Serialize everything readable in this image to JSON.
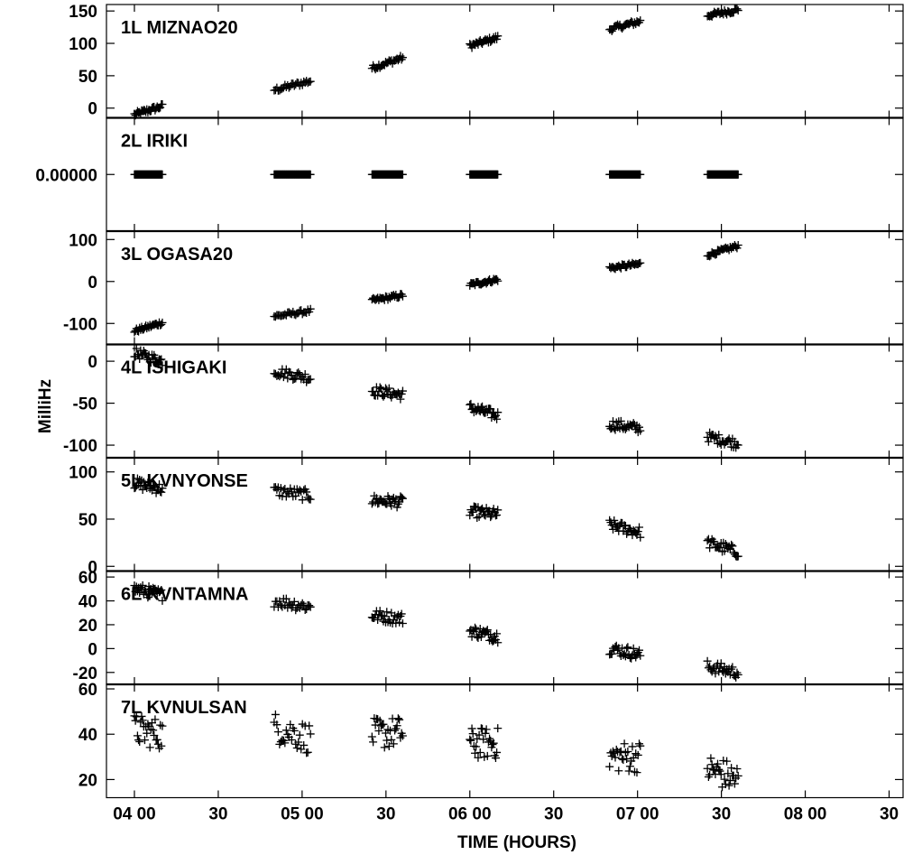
{
  "chart_data": {
    "type": "scatter",
    "xlabel": "TIME (HOURS)",
    "ylabel": "MilliHz",
    "xlim": [
      "03:50",
      "08:35"
    ],
    "x_ticks": [
      {
        "time": "04:00",
        "label": "04 00"
      },
      {
        "time": "04:30",
        "label": "30"
      },
      {
        "time": "05:00",
        "label": "05 00"
      },
      {
        "time": "05:30",
        "label": "30"
      },
      {
        "time": "06:00",
        "label": "06 00"
      },
      {
        "time": "06:30",
        "label": "30"
      },
      {
        "time": "07:00",
        "label": "07 00"
      },
      {
        "time": "07:30",
        "label": "30"
      },
      {
        "time": "08:00",
        "label": "08 00"
      },
      {
        "time": "08:30",
        "label": "30"
      }
    ],
    "scans": [
      {
        "start": "04:00",
        "end": "04:10"
      },
      {
        "start": "04:50",
        "end": "05:03"
      },
      {
        "start": "05:25",
        "end": "05:36"
      },
      {
        "start": "06:00",
        "end": "06:10"
      },
      {
        "start": "06:50",
        "end": "07:01"
      },
      {
        "start": "07:25",
        "end": "07:36"
      }
    ],
    "panels": [
      {
        "label": "1L MIZNAO20",
        "ylim": [
          -15,
          160
        ],
        "yticks": [
          {
            "v": 0,
            "t": "0"
          },
          {
            "v": 50,
            "t": "50"
          },
          {
            "v": 100,
            "t": "100"
          },
          {
            "v": 150,
            "t": "150"
          }
        ],
        "scan_values": [
          [
            -10,
            3
          ],
          [
            28,
            42
          ],
          [
            62,
            78
          ],
          [
            96,
            109
          ],
          [
            122,
            134
          ],
          [
            143,
            152
          ]
        ],
        "scatter": 4
      },
      {
        "label": "2L IRIKI",
        "ylim": [
          -1,
          1
        ],
        "yticks": [
          {
            "v": 0,
            "t": "0.00000"
          }
        ],
        "scan_values": [
          [
            0,
            0
          ],
          [
            0,
            0
          ],
          [
            0,
            0
          ],
          [
            0,
            0
          ],
          [
            0,
            0
          ],
          [
            0,
            0
          ]
        ],
        "scatter": 0
      },
      {
        "label": "3L OGASA20",
        "ylim": [
          -150,
          120
        ],
        "yticks": [
          {
            "v": -100,
            "t": "-100"
          },
          {
            "v": 0,
            "t": "0"
          },
          {
            "v": 100,
            "t": "100"
          }
        ],
        "scan_values": [
          [
            -118,
            -98
          ],
          [
            -83,
            -70
          ],
          [
            -45,
            -33
          ],
          [
            -8,
            5
          ],
          [
            32,
            42
          ],
          [
            63,
            85
          ]
        ],
        "scatter": 5
      },
      {
        "label": "4L ISHIGAKI",
        "ylim": [
          -115,
          20
        ],
        "yticks": [
          {
            "v": -100,
            "t": "-100"
          },
          {
            "v": -50,
            "t": "-50"
          },
          {
            "v": 0,
            "t": "0"
          }
        ],
        "scan_values": [
          [
            10,
            0
          ],
          [
            -12,
            -20
          ],
          [
            -35,
            -40
          ],
          [
            -55,
            -65
          ],
          [
            -75,
            -80
          ],
          [
            -90,
            -98
          ]
        ],
        "scatter": 6
      },
      {
        "label": "5L KVNYONSE",
        "ylim": [
          -5,
          115
        ],
        "yticks": [
          {
            "v": 0,
            "t": "0"
          },
          {
            "v": 50,
            "t": "50"
          },
          {
            "v": 100,
            "t": "100"
          }
        ],
        "scan_values": [
          [
            88,
            82
          ],
          [
            80,
            75
          ],
          [
            70,
            68
          ],
          [
            58,
            55
          ],
          [
            44,
            36
          ],
          [
            25,
            15
          ]
        ],
        "scatter": 6
      },
      {
        "label": "6L KVNTAMNA",
        "ylim": [
          -30,
          65
        ],
        "yticks": [
          {
            "v": -20,
            "t": "-20"
          },
          {
            "v": 0,
            "t": "0"
          },
          {
            "v": 20,
            "t": "20"
          },
          {
            "v": 40,
            "t": "40"
          },
          {
            "v": 60,
            "t": "60"
          }
        ],
        "scan_values": [
          [
            50,
            45
          ],
          [
            40,
            35
          ],
          [
            28,
            25
          ],
          [
            15,
            10
          ],
          [
            0,
            -5
          ],
          [
            -15,
            -20
          ]
        ],
        "scatter": 5
      },
      {
        "label": "7L KVNULSAN",
        "ylim": [
          12,
          62
        ],
        "yticks": [
          {
            "v": 20,
            "t": "20"
          },
          {
            "v": 40,
            "t": "40"
          },
          {
            "v": 60,
            "t": "60"
          }
        ],
        "scan_values": [
          [
            42,
            40
          ],
          [
            43,
            38
          ],
          [
            40,
            41
          ],
          [
            36,
            36
          ],
          [
            30,
            30
          ],
          [
            25,
            20
          ]
        ],
        "scatter": 7
      }
    ]
  }
}
